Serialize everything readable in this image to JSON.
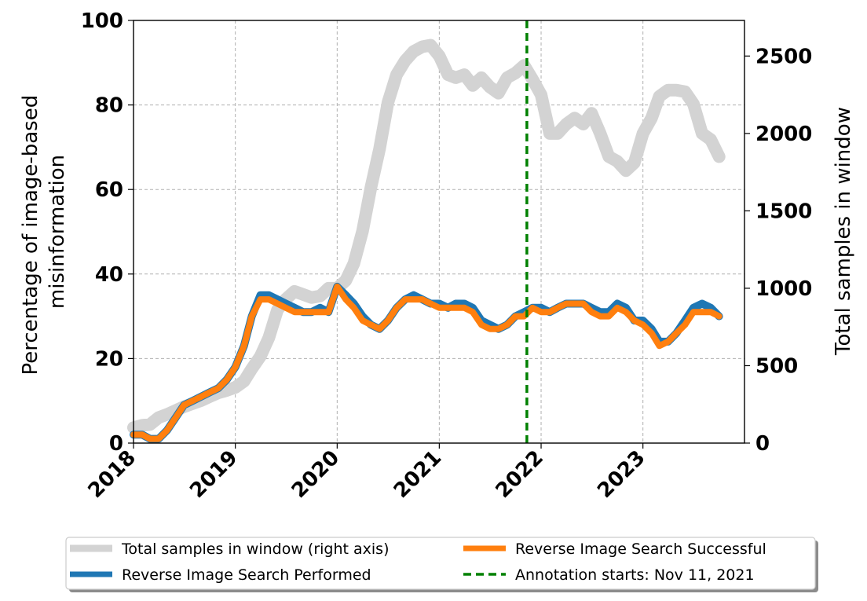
{
  "chart_data": {
    "type": "line",
    "title": "",
    "xlabel": "",
    "ylabel": "Percentage of image-based\nmisinformation",
    "ylabel_lines": [
      "Percentage of image-based",
      "misinformation"
    ],
    "y2label": "Total samples in window",
    "x_tick_labels": [
      "2018",
      "2019",
      "2020",
      "2021",
      "2022",
      "2023"
    ],
    "x_ticks": [
      "2018-01-01",
      "2019-01-01",
      "2020-01-01",
      "2021-01-01",
      "2022-01-01",
      "2023-01-01"
    ],
    "xlim": [
      "2018-01-01",
      "2023-12-31"
    ],
    "ylim": [
      0,
      100
    ],
    "y_ticks": [
      0,
      20,
      40,
      60,
      80,
      100
    ],
    "y2lim": [
      0,
      2730
    ],
    "y2_ticks": [
      0,
      500,
      1000,
      1500,
      2000,
      2500
    ],
    "grid": true,
    "legend_position": "below chart, two columns",
    "annotation": {
      "date": "2021-11-11",
      "label": "Annotation starts: Nov 11, 2021",
      "color": "#008000"
    },
    "series": [
      {
        "name": "Total samples in window (right axis)",
        "axis": "right",
        "color": "#d3d3d3",
        "x": [
          "2018-01-01",
          "2018-02-01",
          "2018-03-01",
          "2018-04-01",
          "2018-05-01",
          "2018-06-01",
          "2018-07-01",
          "2018-08-01",
          "2018-09-01",
          "2018-10-01",
          "2018-11-01",
          "2018-12-01",
          "2019-01-01",
          "2019-02-01",
          "2019-03-01",
          "2019-04-01",
          "2019-05-01",
          "2019-06-01",
          "2019-07-01",
          "2019-08-01",
          "2019-09-01",
          "2019-10-01",
          "2019-11-01",
          "2019-12-01",
          "2020-01-01",
          "2020-02-01",
          "2020-03-01",
          "2020-04-01",
          "2020-05-01",
          "2020-06-01",
          "2020-07-01",
          "2020-08-01",
          "2020-09-01",
          "2020-10-01",
          "2020-11-01",
          "2020-12-01",
          "2021-01-01",
          "2021-02-01",
          "2021-03-01",
          "2021-04-01",
          "2021-05-01",
          "2021-06-01",
          "2021-07-01",
          "2021-08-01",
          "2021-09-01",
          "2021-10-01",
          "2021-11-01",
          "2021-12-01",
          "2022-01-01",
          "2022-02-01",
          "2022-03-01",
          "2022-04-01",
          "2022-05-01",
          "2022-06-01",
          "2022-07-01",
          "2022-08-01",
          "2022-09-01",
          "2022-10-01",
          "2022-11-01",
          "2022-12-01",
          "2023-01-01",
          "2023-02-01",
          "2023-03-01",
          "2023-04-01",
          "2023-05-01",
          "2023-06-01",
          "2023-07-01",
          "2023-08-01",
          "2023-09-01",
          "2023-10-01"
        ],
        "values": [
          100,
          115,
          120,
          165,
          185,
          210,
          235,
          255,
          275,
          300,
          325,
          340,
          360,
          400,
          480,
          560,
          680,
          860,
          930,
          980,
          960,
          940,
          950,
          1000,
          1000,
          1050,
          1160,
          1370,
          1650,
          1900,
          2200,
          2380,
          2470,
          2530,
          2560,
          2570,
          2500,
          2380,
          2360,
          2380,
          2310,
          2360,
          2300,
          2260,
          2360,
          2390,
          2440,
          2350,
          2250,
          2000,
          2000,
          2060,
          2100,
          2060,
          2130,
          2000,
          1850,
          1820,
          1760,
          1810,
          2000,
          2100,
          2240,
          2280,
          2280,
          2270,
          2190,
          2000,
          1960,
          1850
        ]
      },
      {
        "name": "Reverse Image Search Performed",
        "axis": "left",
        "color": "#1f77b4",
        "x": [
          "2018-01-01",
          "2018-02-01",
          "2018-03-01",
          "2018-04-01",
          "2018-05-01",
          "2018-06-01",
          "2018-07-01",
          "2018-08-01",
          "2018-09-01",
          "2018-10-01",
          "2018-11-01",
          "2018-12-01",
          "2019-01-01",
          "2019-02-01",
          "2019-03-01",
          "2019-04-01",
          "2019-05-01",
          "2019-06-01",
          "2019-07-01",
          "2019-08-01",
          "2019-09-01",
          "2019-10-01",
          "2019-11-01",
          "2019-12-01",
          "2020-01-01",
          "2020-02-01",
          "2020-03-01",
          "2020-04-01",
          "2020-05-01",
          "2020-06-01",
          "2020-07-01",
          "2020-08-01",
          "2020-09-01",
          "2020-10-01",
          "2020-11-01",
          "2020-12-01",
          "2021-01-01",
          "2021-02-01",
          "2021-03-01",
          "2021-04-01",
          "2021-05-01",
          "2021-06-01",
          "2021-07-01",
          "2021-08-01",
          "2021-09-01",
          "2021-10-01",
          "2021-11-01",
          "2021-12-01",
          "2022-01-01",
          "2022-02-01",
          "2022-03-01",
          "2022-04-01",
          "2022-05-01",
          "2022-06-01",
          "2022-07-01",
          "2022-08-01",
          "2022-09-01",
          "2022-10-01",
          "2022-11-01",
          "2022-12-01",
          "2023-01-01",
          "2023-02-01",
          "2023-03-01",
          "2023-04-01",
          "2023-05-01",
          "2023-06-01",
          "2023-07-01",
          "2023-08-01",
          "2023-09-01",
          "2023-10-01"
        ],
        "values": [
          2,
          2,
          1,
          1,
          3,
          6,
          9,
          10,
          11,
          12,
          13,
          15,
          18,
          23,
          30,
          35,
          35,
          34,
          33,
          32,
          31,
          31,
          32,
          31,
          37,
          35,
          33,
          30,
          28,
          27,
          29,
          32,
          34,
          35,
          34,
          33,
          33,
          32,
          33,
          33,
          32,
          29,
          28,
          27,
          28,
          30,
          31,
          32,
          32,
          31,
          32,
          33,
          33,
          33,
          32,
          31,
          31,
          33,
          32,
          29,
          29,
          27,
          24,
          24,
          26,
          29,
          32,
          33,
          32,
          30
        ]
      },
      {
        "name": "Reverse Image Search Successful",
        "axis": "left",
        "color": "#ff7f0e",
        "x": [
          "2018-01-01",
          "2018-02-01",
          "2018-03-01",
          "2018-04-01",
          "2018-05-01",
          "2018-06-01",
          "2018-07-01",
          "2018-08-01",
          "2018-09-01",
          "2018-10-01",
          "2018-11-01",
          "2018-12-01",
          "2019-01-01",
          "2019-02-01",
          "2019-03-01",
          "2019-04-01",
          "2019-05-01",
          "2019-06-01",
          "2019-07-01",
          "2019-08-01",
          "2019-09-01",
          "2019-10-01",
          "2019-11-01",
          "2019-12-01",
          "2020-01-01",
          "2020-02-01",
          "2020-03-01",
          "2020-04-01",
          "2020-05-01",
          "2020-06-01",
          "2020-07-01",
          "2020-08-01",
          "2020-09-01",
          "2020-10-01",
          "2020-11-01",
          "2020-12-01",
          "2021-01-01",
          "2021-02-01",
          "2021-03-01",
          "2021-04-01",
          "2021-05-01",
          "2021-06-01",
          "2021-07-01",
          "2021-08-01",
          "2021-09-01",
          "2021-10-01",
          "2021-11-01",
          "2021-12-01",
          "2022-01-01",
          "2022-02-01",
          "2022-03-01",
          "2022-04-01",
          "2022-05-01",
          "2022-06-01",
          "2022-07-01",
          "2022-08-01",
          "2022-09-01",
          "2022-10-01",
          "2022-11-01",
          "2022-12-01",
          "2023-01-01",
          "2023-02-01",
          "2023-03-01",
          "2023-04-01",
          "2023-05-01",
          "2023-06-01",
          "2023-07-01",
          "2023-08-01",
          "2023-09-01",
          "2023-10-01"
        ],
        "values": [
          2,
          2,
          1,
          1,
          3,
          6,
          9,
          10,
          11,
          12,
          13,
          15,
          18,
          23,
          30,
          34,
          34,
          33,
          32,
          31,
          31,
          31,
          31,
          31,
          37,
          34,
          32,
          29,
          28,
          27,
          29,
          32,
          34,
          34,
          34,
          33,
          32,
          32,
          32,
          32,
          31,
          28,
          27,
          27,
          28,
          30,
          30,
          32,
          31,
          31,
          32,
          33,
          33,
          33,
          31,
          30,
          30,
          32,
          31,
          29,
          28,
          26,
          23,
          24,
          26,
          28,
          31,
          31,
          31,
          30
        ]
      }
    ]
  }
}
